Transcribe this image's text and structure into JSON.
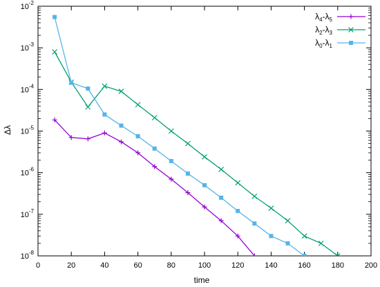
{
  "chart_data": {
    "type": "line",
    "title": "",
    "xlabel": "time",
    "ylabel": "Δλ",
    "xlim": [
      0,
      200
    ],
    "ylim": [
      1e-08,
      0.01
    ],
    "yscale": "log",
    "grid": false,
    "legend_position": "top-right",
    "x_ticks": [
      "0",
      "20",
      "40",
      "60",
      "80",
      "100",
      "120",
      "140",
      "160",
      "180",
      "200"
    ],
    "y_ticks": [
      {
        "value": 1e-08,
        "mantissa": "10",
        "exp": "-8"
      },
      {
        "value": 1e-07,
        "mantissa": "10",
        "exp": "-7"
      },
      {
        "value": 1e-06,
        "mantissa": "10",
        "exp": "-6"
      },
      {
        "value": 1e-05,
        "mantissa": "10",
        "exp": "-5"
      },
      {
        "value": 0.0001,
        "mantissa": "10",
        "exp": "-4"
      },
      {
        "value": 0.001,
        "mantissa": "10",
        "exp": "-3"
      },
      {
        "value": 0.01,
        "mantissa": "10",
        "exp": "-2"
      }
    ],
    "series": [
      {
        "name": "λ4-λ5",
        "label_parts": [
          {
            "t": "λ"
          },
          {
            "s": "4"
          },
          {
            "t": "-λ"
          },
          {
            "s": "5"
          }
        ],
        "color": "#9400d3",
        "marker": "plus",
        "x": [
          10,
          20,
          30,
          40,
          50,
          60,
          70,
          80,
          90,
          100,
          110,
          120,
          130
        ],
        "y": [
          1.85e-05,
          7e-06,
          6.5e-06,
          9e-06,
          5.5e-06,
          3e-06,
          1.4e-06,
          7e-07,
          3.3e-07,
          1.5e-07,
          7e-08,
          3e-08,
          1e-08
        ]
      },
      {
        "name": "λ2-λ3",
        "label_parts": [
          {
            "t": "λ"
          },
          {
            "s": "2"
          },
          {
            "t": "-λ"
          },
          {
            "s": "3"
          }
        ],
        "color": "#009e73",
        "marker": "cross",
        "x": [
          10,
          20,
          30,
          40,
          50,
          60,
          70,
          80,
          90,
          100,
          110,
          120,
          130,
          140,
          150,
          160,
          170,
          180
        ],
        "y": [
          0.0008,
          0.00015,
          3.8e-05,
          0.00012,
          9e-05,
          4.3e-05,
          2.1e-05,
          1e-05,
          5e-06,
          2.4e-06,
          1.2e-06,
          5.7e-07,
          2.7e-07,
          1.4e-07,
          7e-08,
          3e-08,
          2e-08,
          1e-08
        ]
      },
      {
        "name": "λ0-λ1",
        "label_parts": [
          {
            "t": "λ"
          },
          {
            "s": "0"
          },
          {
            "t": "-λ"
          },
          {
            "s": "1"
          }
        ],
        "color": "#56b4e9",
        "marker": "square",
        "x": [
          10,
          20,
          30,
          40,
          50,
          60,
          70,
          80,
          90,
          100,
          110,
          120,
          130,
          140,
          150,
          160
        ],
        "y": [
          0.0055,
          0.000145,
          0.000105,
          2.5e-05,
          1.35e-05,
          7.5e-06,
          3.8e-06,
          1.9e-06,
          9.5e-07,
          5e-07,
          2.5e-07,
          1.2e-07,
          6e-08,
          3e-08,
          2e-08,
          1e-08
        ]
      }
    ]
  }
}
